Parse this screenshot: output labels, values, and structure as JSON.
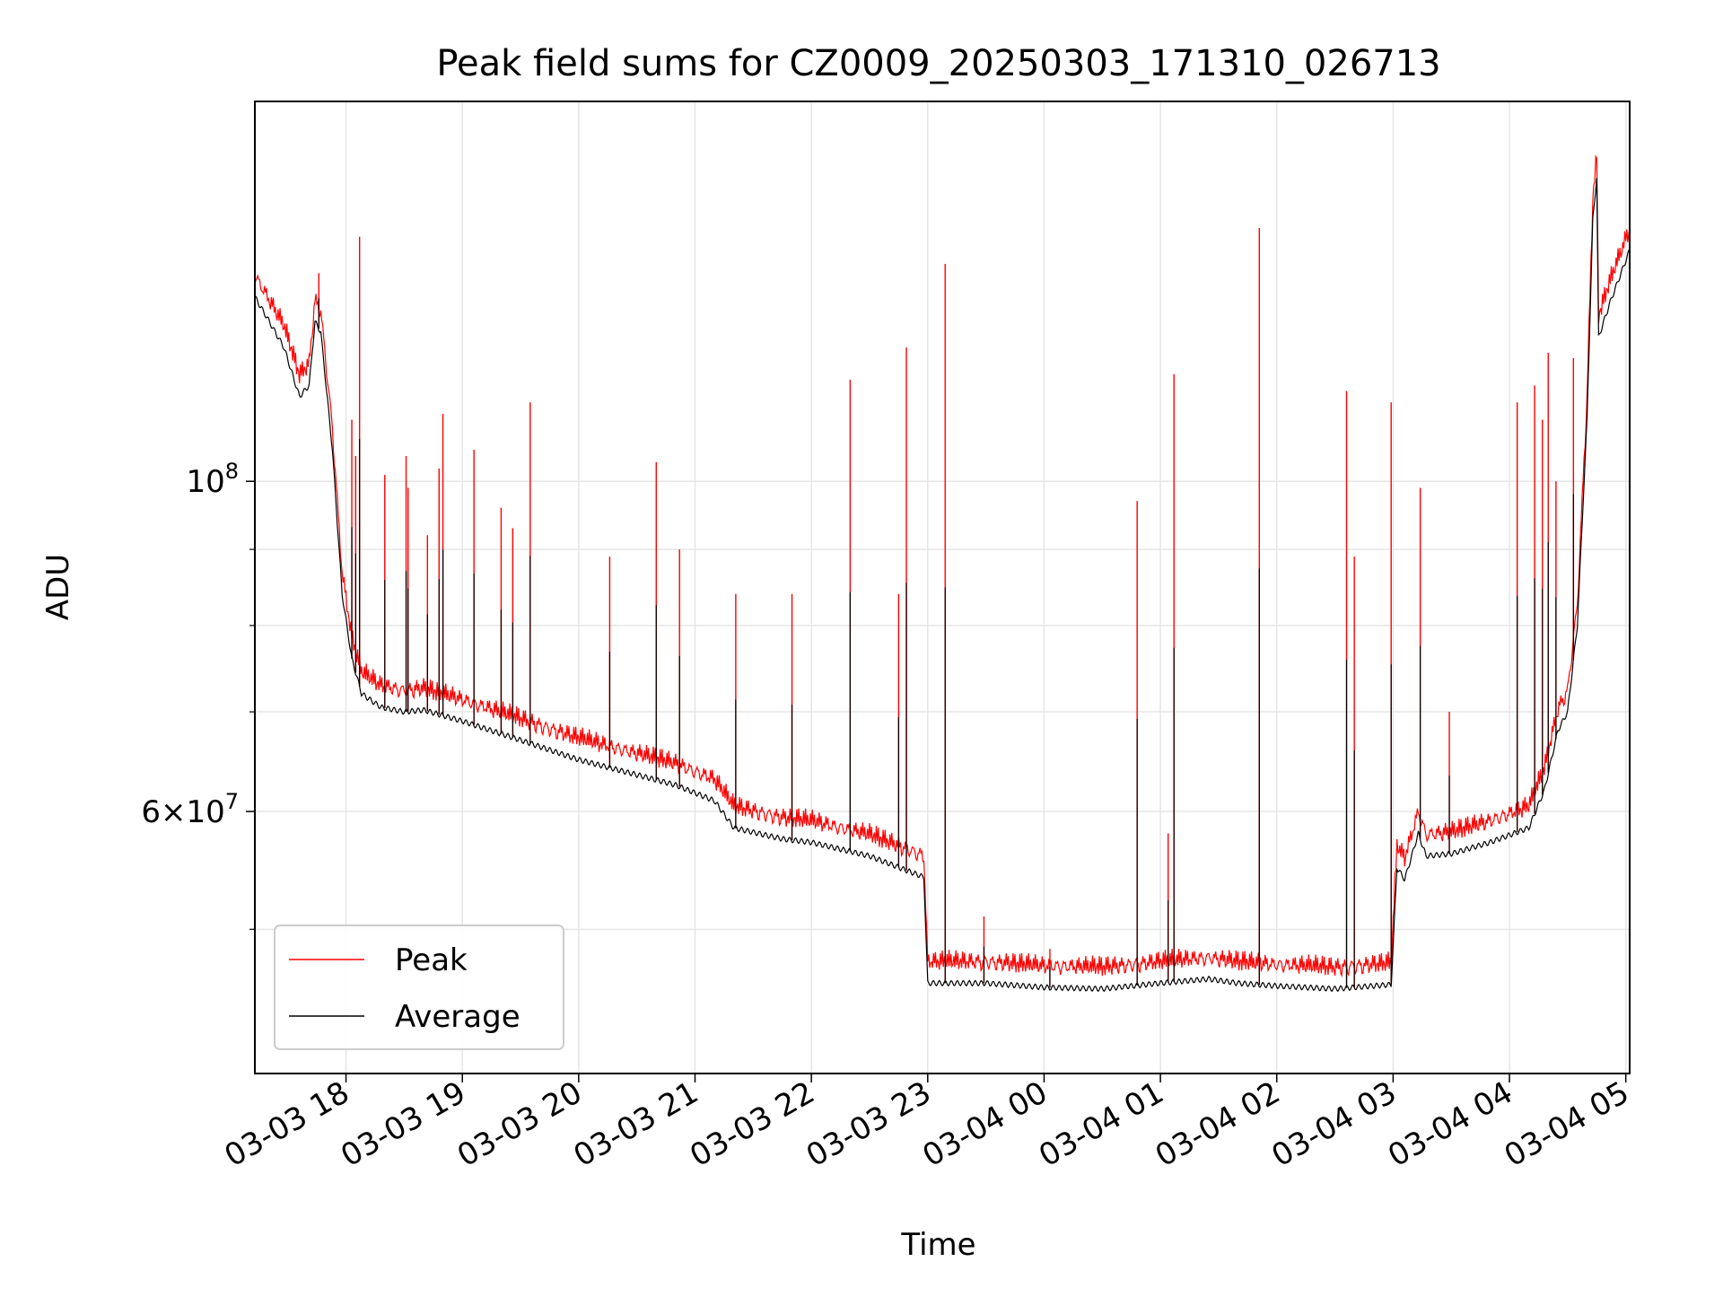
{
  "chart_data": {
    "type": "line",
    "title": "Peak field sums for CZ0009_20250303_171310_026713",
    "xlabel": "Time",
    "ylabel": "ADU",
    "y_scale": "log",
    "ylim": [
      40000000,
      180000000
    ],
    "xlim": [
      "2025-03-03 17:13",
      "2025-03-04 05:02"
    ],
    "grid": true,
    "legend_position": "lower-left",
    "x_ticks": [
      {
        "t": "2025-03-03 18:00",
        "label": "03-03 18"
      },
      {
        "t": "2025-03-03 19:00",
        "label": "03-03 19"
      },
      {
        "t": "2025-03-03 20:00",
        "label": "03-03 20"
      },
      {
        "t": "2025-03-03 21:00",
        "label": "03-03 21"
      },
      {
        "t": "2025-03-03 22:00",
        "label": "03-03 22"
      },
      {
        "t": "2025-03-03 23:00",
        "label": "03-03 23"
      },
      {
        "t": "2025-03-04 00:00",
        "label": "03-04 00"
      },
      {
        "t": "2025-03-04 01:00",
        "label": "03-04 01"
      },
      {
        "t": "2025-03-04 02:00",
        "label": "03-04 02"
      },
      {
        "t": "2025-03-04 03:00",
        "label": "03-04 03"
      },
      {
        "t": "2025-03-04 04:00",
        "label": "03-04 04"
      },
      {
        "t": "2025-03-04 05:00",
        "label": "03-04 05"
      }
    ],
    "y_major_ticks": [
      {
        "v": 60000000,
        "mant": "6",
        "exp": "7"
      },
      {
        "v": 100000000,
        "mant": "",
        "exp": "8"
      }
    ],
    "y_minor_ticks": [
      50000000,
      70000000,
      80000000,
      90000000
    ],
    "series": [
      {
        "name": "Average",
        "color": "#000000",
        "points": [
          [
            "2025-03-03 17:13",
            133000000
          ],
          [
            "2025-03-03 17:19",
            129000000
          ],
          [
            "2025-03-03 17:28",
            123000000
          ],
          [
            "2025-03-03 17:36",
            114000000
          ],
          [
            "2025-03-03 17:41",
            116000000
          ],
          [
            "2025-03-03 17:44",
            128000000
          ],
          [
            "2025-03-03 17:47",
            126000000
          ],
          [
            "2025-03-03 17:53",
            105000000
          ],
          [
            "2025-03-03 17:58",
            84000000
          ],
          [
            "2025-03-03 18:03",
            76000000
          ],
          [
            "2025-03-03 18:08",
            72000000
          ],
          [
            "2025-03-03 18:18",
            70500000
          ],
          [
            "2025-03-03 18:30",
            70000000
          ],
          [
            "2025-03-03 18:40",
            70200000
          ],
          [
            "2025-03-03 19:00",
            69000000
          ],
          [
            "2025-03-03 19:30",
            67000000
          ],
          [
            "2025-03-03 20:00",
            65000000
          ],
          [
            "2025-03-03 20:30",
            63500000
          ],
          [
            "2025-03-03 20:50",
            62500000
          ],
          [
            "2025-03-03 21:10",
            61000000
          ],
          [
            "2025-03-03 21:20",
            58500000
          ],
          [
            "2025-03-03 21:45",
            57500000
          ],
          [
            "2025-03-03 22:00",
            57200000
          ],
          [
            "2025-03-03 22:30",
            56000000
          ],
          [
            "2025-03-03 22:58",
            54200000
          ],
          [
            "2025-03-03 23:00",
            46000000
          ],
          [
            "2025-03-03 23:30",
            46000000
          ],
          [
            "2025-03-04 00:00",
            45700000
          ],
          [
            "2025-03-04 00:30",
            45600000
          ],
          [
            "2025-03-04 01:00",
            46000000
          ],
          [
            "2025-03-04 01:25",
            46300000
          ],
          [
            "2025-03-04 01:40",
            46000000
          ],
          [
            "2025-03-04 02:00",
            45800000
          ],
          [
            "2025-03-04 02:30",
            45600000
          ],
          [
            "2025-03-04 02:59",
            45900000
          ],
          [
            "2025-03-04 03:02",
            55000000
          ],
          [
            "2025-03-04 03:06",
            54000000
          ],
          [
            "2025-03-04 03:13",
            58000000
          ],
          [
            "2025-03-04 03:17",
            56000000
          ],
          [
            "2025-03-04 03:30",
            56200000
          ],
          [
            "2025-03-04 03:50",
            57200000
          ],
          [
            "2025-03-04 04:10",
            58500000
          ],
          [
            "2025-03-04 04:18",
            62000000
          ],
          [
            "2025-03-04 04:25",
            68000000
          ],
          [
            "2025-03-04 04:30",
            70000000
          ],
          [
            "2025-03-04 04:35",
            80000000
          ],
          [
            "2025-03-04 04:40",
            110000000
          ],
          [
            "2025-03-04 04:43",
            150000000
          ],
          [
            "2025-03-04 04:45",
            160000000
          ],
          [
            "2025-03-04 04:46",
            125000000
          ],
          [
            "2025-03-04 04:52",
            132000000
          ],
          [
            "2025-03-04 05:02",
            143000000
          ]
        ]
      },
      {
        "name": "Peak",
        "color": "#ff0000",
        "base_offset": 1.02,
        "spikes": [
          [
            "2025-03-03 17:46",
            138000000
          ],
          [
            "2025-03-03 18:03",
            110000000
          ],
          [
            "2025-03-03 18:05",
            104000000
          ],
          [
            "2025-03-03 18:07",
            146000000
          ],
          [
            "2025-03-03 18:20",
            101000000
          ],
          [
            "2025-03-03 18:31",
            104000000
          ],
          [
            "2025-03-03 18:32",
            99000000
          ],
          [
            "2025-03-03 18:42",
            92000000
          ],
          [
            "2025-03-03 18:48",
            102000000
          ],
          [
            "2025-03-03 18:50",
            111000000
          ],
          [
            "2025-03-03 19:06",
            105000000
          ],
          [
            "2025-03-03 19:20",
            96000000
          ],
          [
            "2025-03-03 19:26",
            93000000
          ],
          [
            "2025-03-03 19:35",
            113000000
          ],
          [
            "2025-03-03 20:16",
            89000000
          ],
          [
            "2025-03-03 20:40",
            103000000
          ],
          [
            "2025-03-03 20:52",
            90000000
          ],
          [
            "2025-03-03 21:21",
            84000000
          ],
          [
            "2025-03-03 21:50",
            84000000
          ],
          [
            "2025-03-03 22:20",
            117000000
          ],
          [
            "2025-03-03 22:45",
            84000000
          ],
          [
            "2025-03-03 22:49",
            123000000
          ],
          [
            "2025-03-03 23:09",
            140000000
          ],
          [
            "2025-03-03 23:29",
            51000000
          ],
          [
            "2025-03-04 00:03",
            48500000
          ],
          [
            "2025-03-04 00:48",
            97000000
          ],
          [
            "2025-03-04 01:04",
            58000000
          ],
          [
            "2025-03-04 01:07",
            118000000
          ],
          [
            "2025-03-04 01:51",
            148000000
          ],
          [
            "2025-03-04 02:36",
            115000000
          ],
          [
            "2025-03-04 02:40",
            89000000
          ],
          [
            "2025-03-04 02:59",
            113000000
          ],
          [
            "2025-03-04 03:14",
            99000000
          ],
          [
            "2025-03-04 03:29",
            70000000
          ],
          [
            "2025-03-04 04:04",
            113000000
          ],
          [
            "2025-03-04 04:13",
            116000000
          ],
          [
            "2025-03-04 04:17",
            110000000
          ],
          [
            "2025-03-04 04:20",
            122000000
          ],
          [
            "2025-03-04 04:24",
            100000000
          ],
          [
            "2025-03-04 04:33",
            121000000
          ]
        ]
      }
    ]
  }
}
